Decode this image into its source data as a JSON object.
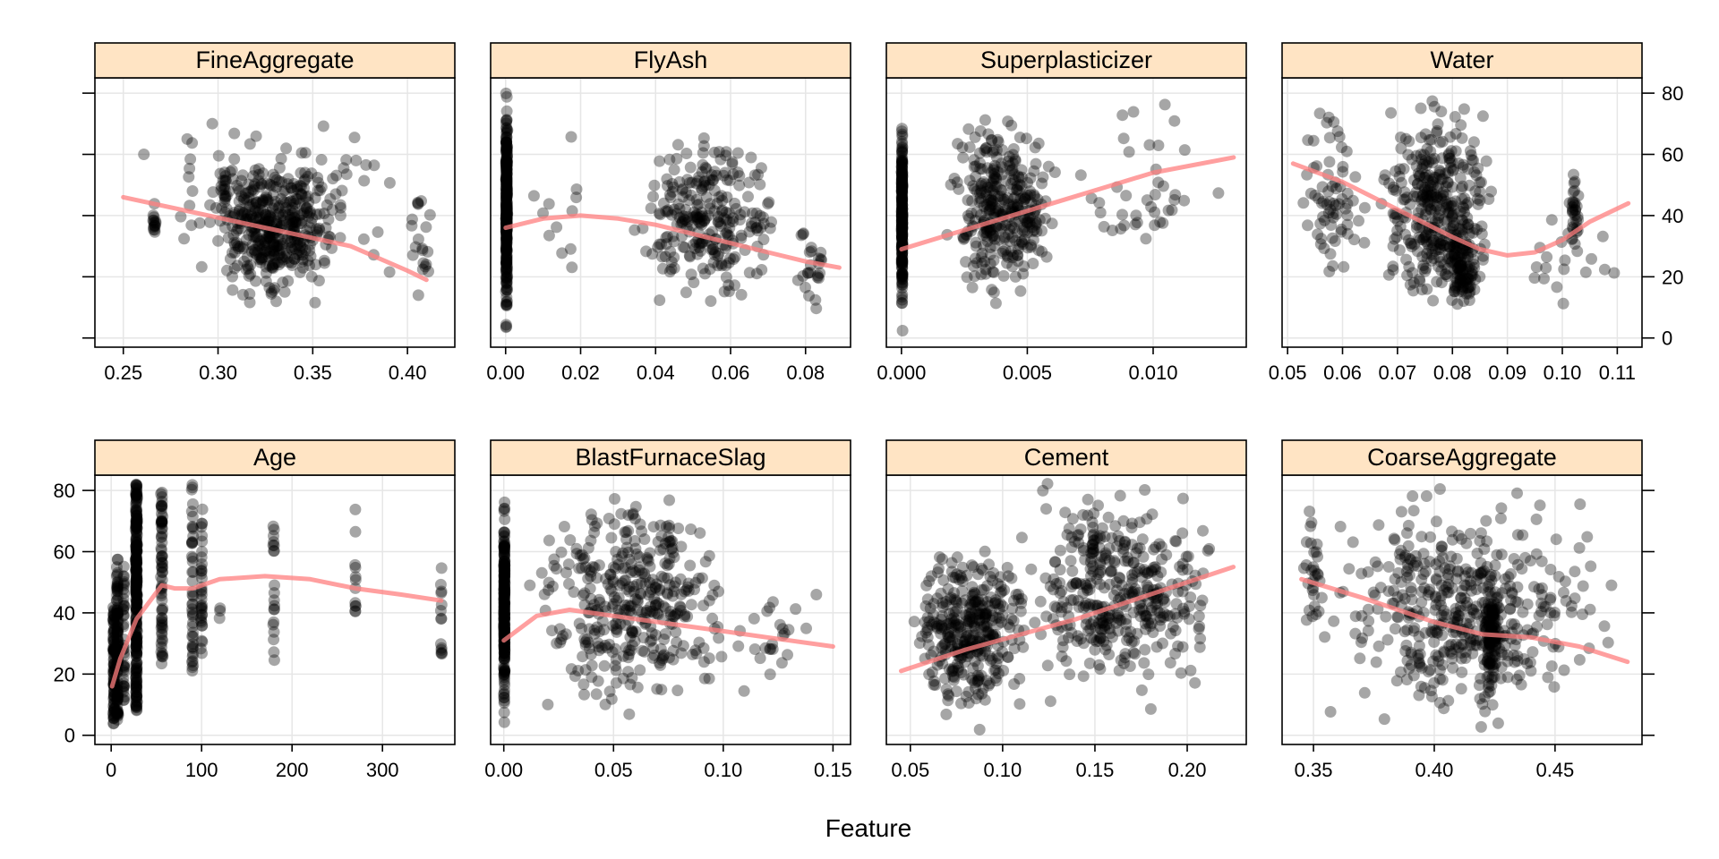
{
  "chart_data": {
    "type": "scatter",
    "title": "",
    "xlabel": "Feature",
    "ylabel": "",
    "layout": "2 rows x 4 columns trellis (lattice) scatterplots with loess smoother",
    "point_color": "#000000",
    "point_opacity": 0.35,
    "smooth_color": "#ff7f7f",
    "strip_color": "#ffe4c4",
    "grid": true,
    "shared_y_range": [
      -3,
      85
    ],
    "y_ticks": [
      0,
      20,
      40,
      60,
      80
    ],
    "y_tick_labels": [
      "0",
      "20",
      "40",
      "60",
      "80"
    ],
    "panels": [
      {
        "name": "FineAggregate",
        "xlim": [
          0.235,
          0.425
        ],
        "x_ticks": [
          0.25,
          0.3,
          0.35,
          0.4
        ],
        "x_tick_labels": [
          "0.25",
          "0.30",
          "0.35",
          "0.40"
        ],
        "smooth_x": [
          0.25,
          0.28,
          0.31,
          0.34,
          0.37,
          0.4,
          0.41
        ],
        "smooth_y": [
          46,
          42,
          38,
          34,
          30,
          22,
          19
        ],
        "clusters": [
          {
            "x": [
              0.25,
              0.41
            ],
            "y": [
              5,
              80
            ],
            "n": 160
          },
          {
            "x": [
              0.29,
              0.37
            ],
            "y": [
              12,
              60
            ],
            "n": 320
          },
          {
            "x": [
              0.265,
              0.268
            ],
            "y": [
              32,
              45
            ],
            "n": 15
          },
          {
            "x": [
              0.302,
              0.305
            ],
            "y": [
              38,
              62
            ],
            "n": 14
          },
          {
            "x": [
              0.4,
              0.415
            ],
            "y": [
              5,
              60
            ],
            "n": 20
          }
        ]
      },
      {
        "name": "FlyAsh",
        "xlim": [
          -0.004,
          0.092
        ],
        "x_ticks": [
          0.0,
          0.02,
          0.04,
          0.06,
          0.08
        ],
        "x_tick_labels": [
          "0.00",
          "0.02",
          "0.04",
          "0.06",
          "0.08"
        ],
        "smooth_x": [
          0.0,
          0.01,
          0.02,
          0.03,
          0.04,
          0.05,
          0.06,
          0.07,
          0.08,
          0.089
        ],
        "smooth_y": [
          36,
          39,
          40,
          39,
          37,
          34,
          31,
          28,
          25,
          23
        ],
        "clusters": [
          {
            "x": [
              0.0,
              0.0005
            ],
            "y": [
              2,
              82
            ],
            "n": 300
          },
          {
            "x": [
              0.032,
              0.075
            ],
            "y": [
              8,
              70
            ],
            "n": 260
          },
          {
            "x": [
              0.075,
              0.088
            ],
            "y": [
              8,
              40
            ],
            "n": 25
          },
          {
            "x": [
              0.005,
              0.025
            ],
            "y": [
              10,
              68
            ],
            "n": 12
          }
        ]
      },
      {
        "name": "Superplasticizer",
        "xlim": [
          -0.0006,
          0.0137
        ],
        "x_ticks": [
          0.0,
          0.005,
          0.01
        ],
        "x_tick_labels": [
          "0.000",
          "0.005",
          "0.010"
        ],
        "smooth_x": [
          0.0,
          0.002,
          0.004,
          0.006,
          0.008,
          0.01,
          0.0132
        ],
        "smooth_y": [
          29,
          34,
          39,
          44,
          49,
          54,
          59
        ],
        "clusters": [
          {
            "x": [
              0.0,
              5e-05
            ],
            "y": [
              2,
              75
            ],
            "n": 240
          },
          {
            "x": [
              0.0015,
              0.0065
            ],
            "y": [
              10,
              75
            ],
            "n": 330
          },
          {
            "x": [
              0.006,
              0.0132
            ],
            "y": [
              15,
              82
            ],
            "n": 40
          }
        ]
      },
      {
        "name": "Water",
        "xlim": [
          0.049,
          0.1145
        ],
        "x_ticks": [
          0.05,
          0.06,
          0.07,
          0.08,
          0.09,
          0.1,
          0.11
        ],
        "x_tick_labels": [
          "0.05",
          "0.06",
          "0.07",
          "0.08",
          "0.09",
          "0.10",
          "0.11"
        ],
        "smooth_x": [
          0.051,
          0.06,
          0.07,
          0.08,
          0.085,
          0.09,
          0.095,
          0.1,
          0.105,
          0.112
        ],
        "smooth_y": [
          57,
          51,
          42,
          33,
          29,
          27,
          28,
          32,
          38,
          44
        ],
        "clusters": [
          {
            "x": [
              0.051,
              0.065
            ],
            "y": [
              8,
              82
            ],
            "n": 70
          },
          {
            "x": [
              0.065,
              0.09
            ],
            "y": [
              5,
              80
            ],
            "n": 360
          },
          {
            "x": [
              0.078,
              0.086
            ],
            "y": [
              10,
              35
            ],
            "n": 90
          },
          {
            "x": [
              0.101,
              0.1035
            ],
            "y": [
              25,
              55
            ],
            "n": 30
          },
          {
            "x": [
              0.09,
              0.112
            ],
            "y": [
              8,
              40
            ],
            "n": 20
          }
        ]
      },
      {
        "name": "Age",
        "xlim": [
          -18,
          380
        ],
        "x_ticks": [
          0,
          100,
          200,
          300
        ],
        "x_tick_labels": [
          "0",
          "100",
          "200",
          "300"
        ],
        "smooth_x": [
          1,
          10,
          28,
          56,
          70,
          90,
          120,
          170,
          220,
          270,
          320,
          365
        ],
        "smooth_y": [
          16,
          25,
          38,
          49,
          48,
          48,
          51,
          52,
          51,
          48,
          46,
          44
        ],
        "columns": [
          {
            "x": 3,
            "y": [
              3,
              42
            ],
            "n": 90
          },
          {
            "x": 7,
            "y": [
              5,
              58
            ],
            "n": 100
          },
          {
            "x": 14,
            "y": [
              10,
              60
            ],
            "n": 40
          },
          {
            "x": 28,
            "y": [
              8,
              82
            ],
            "n": 260
          },
          {
            "x": 56,
            "y": [
              23,
              80
            ],
            "n": 70
          },
          {
            "x": 90,
            "y": [
              21,
              82
            ],
            "n": 45
          },
          {
            "x": 100,
            "y": [
              25,
              75
            ],
            "n": 35
          },
          {
            "x": 120,
            "y": [
              38,
              42
            ],
            "n": 3
          },
          {
            "x": 180,
            "y": [
              24,
              72
            ],
            "n": 20
          },
          {
            "x": 270,
            "y": [
              38,
              74
            ],
            "n": 12
          },
          {
            "x": 365,
            "y": [
              25,
              56
            ],
            "n": 14
          }
        ]
      },
      {
        "name": "BlastFurnaceSlag",
        "xlim": [
          -0.006,
          0.158
        ],
        "x_ticks": [
          0.0,
          0.05,
          0.1,
          0.15
        ],
        "x_tick_labels": [
          "0.00",
          "0.05",
          "0.10",
          "0.15"
        ],
        "smooth_x": [
          0.0,
          0.015,
          0.03,
          0.05,
          0.08,
          0.1,
          0.12,
          0.15
        ],
        "smooth_y": [
          31,
          39,
          41,
          39,
          36,
          34,
          32,
          29
        ],
        "clusters": [
          {
            "x": [
              0.0,
              0.0005
            ],
            "y": [
              5,
              80
            ],
            "n": 280
          },
          {
            "x": [
              0.005,
              0.11
            ],
            "y": [
              3,
              82
            ],
            "n": 360
          },
          {
            "x": [
              0.1,
              0.15
            ],
            "y": [
              10,
              55
            ],
            "n": 25
          },
          {
            "x": [
              0.074,
              0.078
            ],
            "y": [
              30,
              80
            ],
            "n": 15
          }
        ]
      },
      {
        "name": "Cement",
        "xlim": [
          0.037,
          0.232
        ],
        "x_ticks": [
          0.05,
          0.1,
          0.15,
          0.2
        ],
        "x_tick_labels": [
          "0.05",
          "0.10",
          "0.15",
          "0.20"
        ],
        "smooth_x": [
          0.045,
          0.08,
          0.11,
          0.14,
          0.17,
          0.2,
          0.225
        ],
        "smooth_y": [
          21,
          28,
          33,
          38,
          44,
          50,
          55
        ],
        "clusters": [
          {
            "x": [
              0.045,
              0.12
            ],
            "y": [
              3,
              65
            ],
            "n": 350
          },
          {
            "x": [
              0.1,
              0.225
            ],
            "y": [
              10,
              82
            ],
            "n": 380
          },
          {
            "x": [
              0.148,
              0.15
            ],
            "y": [
              40,
              80
            ],
            "n": 12
          }
        ]
      },
      {
        "name": "CoarseAggregate",
        "xlim": [
          0.337,
          0.486
        ],
        "x_ticks": [
          0.35,
          0.4,
          0.45
        ],
        "x_tick_labels": [
          "0.35",
          "0.40",
          "0.45"
        ],
        "smooth_x": [
          0.345,
          0.37,
          0.4,
          0.42,
          0.44,
          0.46,
          0.48
        ],
        "smooth_y": [
          51,
          45,
          37,
          33,
          32,
          29,
          24
        ],
        "clusters": [
          {
            "x": [
              0.345,
              0.48
            ],
            "y": [
              3,
              82
            ],
            "n": 420
          },
          {
            "x": [
              0.42,
              0.428
            ],
            "y": [
              8,
              56
            ],
            "n": 120
          },
          {
            "x": [
              0.345,
              0.355
            ],
            "y": [
              30,
              75
            ],
            "n": 30
          },
          {
            "x": [
              0.387,
              0.391
            ],
            "y": [
              10,
              80
            ],
            "n": 20
          }
        ]
      }
    ]
  }
}
